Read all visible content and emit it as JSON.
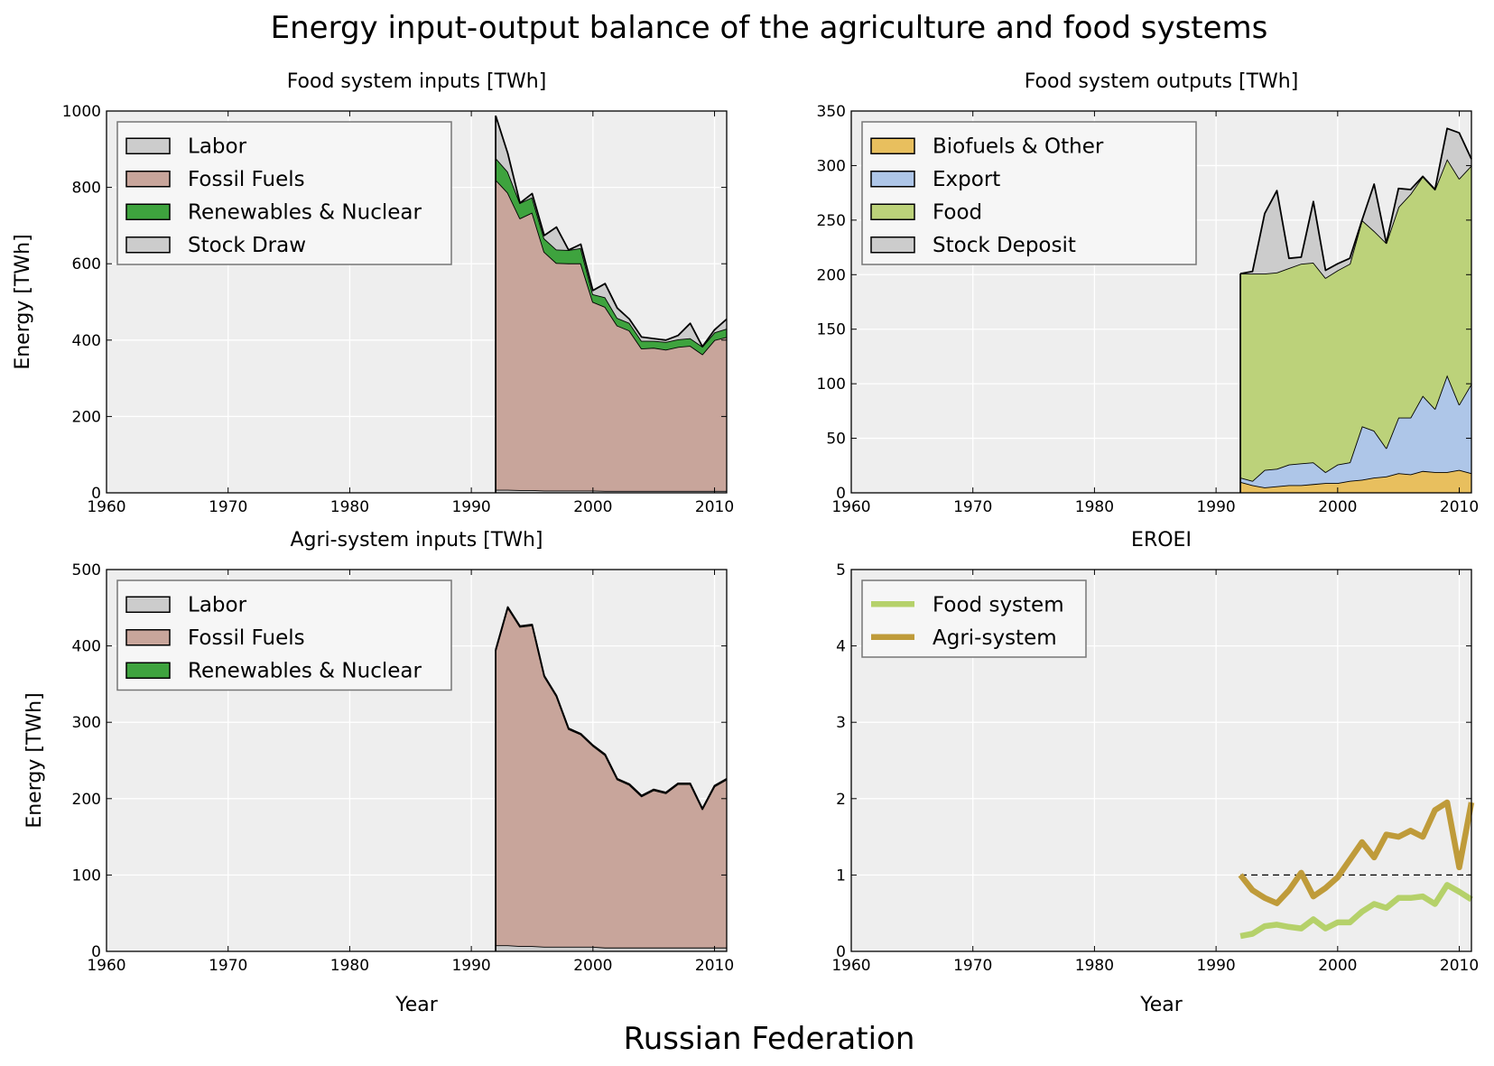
{
  "figure": {
    "title": "Energy input-output balance of the agriculture and food systems",
    "footer": "Russian Federation"
  },
  "chart_data": [
    {
      "id": "food-inputs",
      "type": "area",
      "title": "Food system inputs [TWh]",
      "xlabel": "",
      "ylabel": "Energy [TWh]",
      "xlim": [
        1960,
        2011
      ],
      "ylim": [
        0,
        1000
      ],
      "xticks": [
        "1960",
        "1970",
        "1980",
        "1990",
        "2000",
        "2010"
      ],
      "yticks": [
        "0",
        "200",
        "400",
        "600",
        "800",
        "1000"
      ],
      "grid": true,
      "legend_position": "top-left",
      "x": [
        1992,
        1993,
        1994,
        1995,
        1996,
        1997,
        1998,
        1999,
        2000,
        2001,
        2002,
        2003,
        2004,
        2005,
        2006,
        2007,
        2008,
        2009,
        2010,
        2011
      ],
      "series": [
        {
          "name": "Labor",
          "color": "#cccccc",
          "values": [
            8,
            8,
            7,
            7,
            6,
            6,
            6,
            6,
            6,
            5,
            5,
            5,
            5,
            5,
            5,
            5,
            5,
            5,
            5,
            5
          ]
        },
        {
          "name": "Fossil Fuels",
          "color": "#c8a59b",
          "values": [
            812,
            778,
            712,
            727,
            625,
            596,
            595,
            595,
            494,
            482,
            433,
            420,
            373,
            375,
            370,
            377,
            380,
            358,
            395,
            403
          ]
        },
        {
          "name": "Renewables & Nuclear",
          "color": "#3ea33e",
          "values": [
            57,
            55,
            40,
            40,
            35,
            35,
            35,
            40,
            20,
            25,
            20,
            20,
            20,
            18,
            20,
            20,
            20,
            20,
            20,
            22
          ]
        },
        {
          "name": "Stock Draw",
          "color": "#cccccc",
          "values": [
            111,
            48,
            0,
            10,
            8,
            59,
            0,
            10,
            10,
            36,
            26,
            10,
            10,
            6,
            5,
            10,
            39,
            0,
            7,
            25
          ]
        }
      ]
    },
    {
      "id": "food-outputs",
      "type": "area",
      "title": "Food system outputs [TWh]",
      "xlabel": "",
      "ylabel": "",
      "xlim": [
        1960,
        2011
      ],
      "ylim": [
        0,
        350
      ],
      "xticks": [
        "1960",
        "1970",
        "1980",
        "1990",
        "2000",
        "2010"
      ],
      "yticks": [
        "0",
        "50",
        "100",
        "150",
        "200",
        "250",
        "300",
        "350"
      ],
      "grid": true,
      "legend_position": "top-left",
      "x": [
        1992,
        1993,
        1994,
        1995,
        1996,
        1997,
        1998,
        1999,
        2000,
        2001,
        2002,
        2003,
        2004,
        2005,
        2006,
        2007,
        2008,
        2009,
        2010,
        2011
      ],
      "series": [
        {
          "name": "Biofuels & Other",
          "color": "#e8bf5e",
          "values": [
            10,
            7,
            5,
            6,
            7,
            7,
            8,
            9,
            9,
            11,
            12,
            14,
            15,
            18,
            17,
            20,
            19,
            19,
            21,
            18
          ]
        },
        {
          "name": "Export",
          "color": "#aec6e8",
          "values": [
            4,
            4,
            16,
            16,
            19,
            20,
            20,
            10,
            17,
            17,
            49,
            43,
            26,
            51,
            52,
            69,
            58,
            89,
            60,
            82
          ]
        },
        {
          "name": "Food",
          "color": "#bcd27a",
          "values": [
            187,
            190,
            180,
            180,
            180,
            183,
            183,
            178,
            178,
            182,
            189,
            183,
            188,
            193,
            205,
            201,
            201,
            198,
            207,
            200
          ]
        },
        {
          "name": "Stock Deposit",
          "color": "#cccccc",
          "values": [
            0,
            2,
            55,
            75,
            9,
            6,
            56,
            7,
            6,
            5,
            0,
            43,
            0,
            17,
            4,
            0,
            0,
            28,
            42,
            6
          ]
        }
      ]
    },
    {
      "id": "agri-inputs",
      "type": "area",
      "title": "Agri-system inputs [TWh]",
      "xlabel": "Year",
      "ylabel": "Energy [TWh]",
      "xlim": [
        1960,
        2011
      ],
      "ylim": [
        0,
        500
      ],
      "xticks": [
        "1960",
        "1970",
        "1980",
        "1990",
        "2000",
        "2010"
      ],
      "yticks": [
        "0",
        "100",
        "200",
        "300",
        "400",
        "500"
      ],
      "grid": true,
      "legend_position": "top-left",
      "x": [
        1992,
        1993,
        1994,
        1995,
        1996,
        1997,
        1998,
        1999,
        2000,
        2001,
        2002,
        2003,
        2004,
        2005,
        2006,
        2007,
        2008,
        2009,
        2010,
        2011
      ],
      "series": [
        {
          "name": "Labor",
          "color": "#cccccc",
          "values": [
            8,
            8,
            7,
            7,
            6,
            6,
            6,
            6,
            6,
            5,
            5,
            5,
            5,
            5,
            5,
            5,
            5,
            5,
            5,
            5
          ]
        },
        {
          "name": "Fossil Fuels",
          "color": "#c8a59b",
          "values": [
            386,
            442,
            418,
            420,
            354,
            328,
            285,
            278,
            263,
            252,
            220,
            213,
            198,
            206,
            202,
            214,
            214,
            181,
            211,
            220
          ]
        },
        {
          "name": "Renewables & Nuclear",
          "color": "#3ea33e",
          "values": [
            1,
            1,
            1,
            1,
            1,
            1,
            1,
            1,
            1,
            1,
            1,
            1,
            1,
            1,
            1,
            1,
            1,
            1,
            1,
            1
          ]
        }
      ]
    },
    {
      "id": "eroei",
      "type": "line",
      "title": "EROEI",
      "xlabel": "Year",
      "ylabel": "",
      "xlim": [
        1960,
        2011
      ],
      "ylim": [
        0,
        5
      ],
      "xticks": [
        "1960",
        "1970",
        "1980",
        "1990",
        "2000",
        "2010"
      ],
      "yticks": [
        "0",
        "1",
        "2",
        "3",
        "4",
        "5"
      ],
      "grid": true,
      "legend_position": "top-left",
      "reference_line": 1,
      "x": [
        1992,
        1993,
        1994,
        1995,
        1996,
        1997,
        1998,
        1999,
        2000,
        2001,
        2002,
        2003,
        2004,
        2005,
        2006,
        2007,
        2008,
        2009,
        2010,
        2011
      ],
      "series": [
        {
          "name": "Food system",
          "color": "#b5d16a",
          "values": [
            0.2,
            0.23,
            0.33,
            0.35,
            0.32,
            0.3,
            0.42,
            0.3,
            0.38,
            0.38,
            0.52,
            0.62,
            0.57,
            0.7,
            0.7,
            0.72,
            0.62,
            0.87,
            0.78,
            0.68
          ]
        },
        {
          "name": "Agri-system",
          "color": "#bf9b3a",
          "values": [
            1.0,
            0.8,
            0.7,
            0.63,
            0.8,
            1.03,
            0.72,
            0.83,
            0.97,
            1.2,
            1.43,
            1.23,
            1.53,
            1.5,
            1.58,
            1.5,
            1.85,
            1.95,
            1.1,
            1.95
          ]
        }
      ]
    }
  ]
}
